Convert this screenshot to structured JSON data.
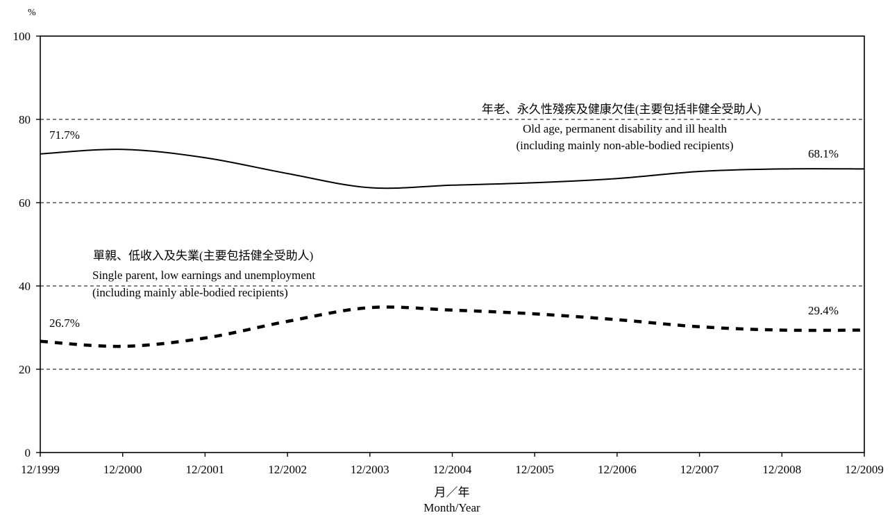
{
  "chart_data": {
    "type": "line",
    "title": "",
    "ylabel": "%",
    "xlabel_zh": "月／年",
    "xlabel_en": "Month/Year",
    "ylim": [
      0,
      100
    ],
    "yticks": [
      0,
      20,
      40,
      60,
      80,
      100
    ],
    "ytick_labels": [
      "0",
      "20",
      "40",
      "60",
      "80",
      "100"
    ],
    "categories": [
      "12/1999",
      "12/2000",
      "12/2001",
      "12/2002",
      "12/2003",
      "12/2004",
      "12/2005",
      "12/2006",
      "12/2007",
      "12/2008",
      "12/2009"
    ],
    "grid": "horizontal-dashed",
    "series": [
      {
        "key": "old_age",
        "values": [
          71.7,
          72.8,
          70.8,
          67.0,
          63.6,
          64.2,
          64.8,
          65.8,
          67.5,
          68.1,
          68.1
        ],
        "line_style": "solid",
        "color": "#000000",
        "label_zh": "年老、永久性殘疾及健康欠佳(主要包括非健全受助人)",
        "label_en_1": "Old age, permanent disability and ill health",
        "label_en_2": "(including mainly non-able-bodied recipients)",
        "start_label": "71.7%",
        "end_label": "68.1%"
      },
      {
        "key": "single_parent",
        "values": [
          26.7,
          25.5,
          27.5,
          31.5,
          34.8,
          34.2,
          33.3,
          31.9,
          30.2,
          29.4,
          29.4
        ],
        "line_style": "dashed",
        "color": "#000000",
        "label_zh": "單親、低收入及失業(主要包括健全受助人)",
        "label_en_1": "Single parent, low earnings and unemployment",
        "label_en_2": "(including mainly able-bodied recipients)",
        "start_label": "26.7%",
        "end_label": "29.4%"
      }
    ]
  }
}
